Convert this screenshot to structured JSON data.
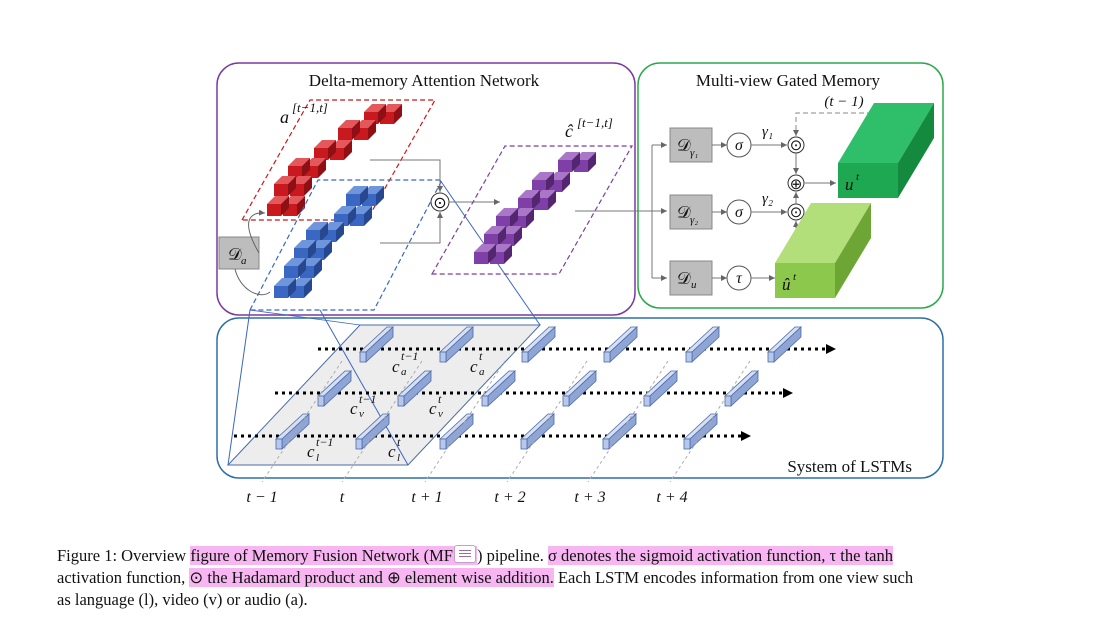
{
  "figure": {
    "dan_title": "Delta-memory Attention Network",
    "mgm_title": "Multi-view Gated Memory",
    "lstm_title": "System of LSTMs",
    "a_label": "a",
    "a_sup": "[t−1,t]",
    "chat_label": "ĉ",
    "chat_sup": "[t−1,t]",
    "d_a_label": "𝒟",
    "d_a_sub": "a",
    "odot": "⊙",
    "oplus": "⊕",
    "d_g1": "𝒟",
    "d_g1_sub": "γ₁",
    "d_g2": "𝒟",
    "d_g2_sub": "γ₂",
    "d_u": "𝒟",
    "d_u_sub": "u",
    "sigma": "σ",
    "tau": "τ",
    "gamma1": "γ₁",
    "gamma2": "γ₂",
    "t_minus_1": "(t − 1)",
    "u_t": "u",
    "u_t_sup": "t",
    "uhat_t": "û",
    "uhat_t_sup": "t",
    "c_a_prev": "c",
    "c_a_prev_sub": "a",
    "c_a_prev_sup": "t−1",
    "c_a_cur": "c",
    "c_a_cur_sub": "a",
    "c_a_cur_sup": "t",
    "c_v_prev": "c",
    "c_v_prev_sub": "v",
    "c_v_prev_sup": "t−1",
    "c_v_cur": "c",
    "c_v_cur_sub": "v",
    "c_v_cur_sup": "t",
    "c_l_prev": "c",
    "c_l_prev_sub": "l",
    "c_l_prev_sup": "t−1",
    "c_l_cur": "c",
    "c_l_cur_sub": "l",
    "c_l_cur_sup": "t",
    "time_labels": [
      "t − 1",
      "t",
      "t + 1",
      "t + 2",
      "t + 3",
      "t + 4"
    ]
  },
  "caption": {
    "line1_a": "Figure 1:  Overview ",
    "line1_b": "figure of Memory Fusion Network (MF",
    "line1_c": ") pipeline. ",
    "line1_d": "σ denotes the sigmoid activation function, τ the tanh",
    "line2_a": "activation function, ",
    "line2_b": "⊙ the Hadamard product and ⊕ element wise addition.",
    "line2_c": " Each LSTM encodes information from one view such",
    "line3": "as language (l), video (v) or audio (a)."
  },
  "colors": {
    "dan_border": "#7a3aa0",
    "mgm_border": "#2aa84a",
    "lstm_border": "#2e6fa8",
    "red": "#c8191e",
    "blue": "#3a67c2",
    "purple": "#7e3fa6",
    "green_dark": "#1fa852",
    "green_light": "#8cc84b",
    "lstm_cell": "#b8c8ea",
    "highlight": "#f7b6f2"
  }
}
